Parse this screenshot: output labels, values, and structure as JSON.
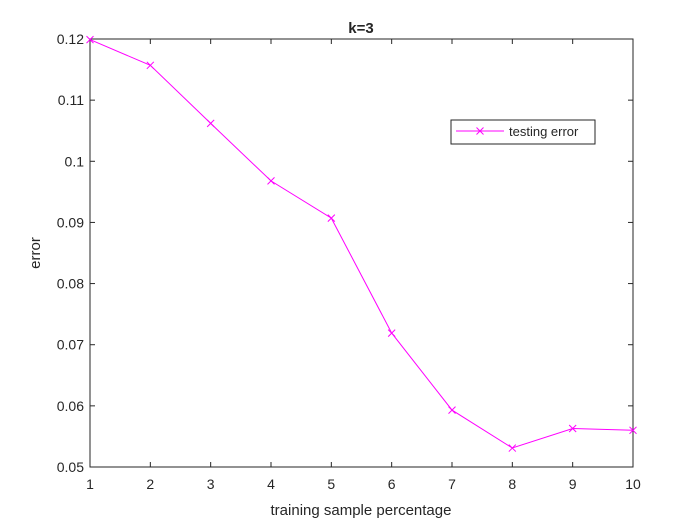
{
  "chart_data": {
    "type": "line",
    "title": "k=3",
    "xlabel": "training sample percentage",
    "ylabel": "error",
    "xlim": [
      1,
      10
    ],
    "ylim": [
      0.05,
      0.12
    ],
    "x_ticks": [
      1,
      2,
      3,
      4,
      5,
      6,
      7,
      8,
      9,
      10
    ],
    "x_tick_labels": [
      "1",
      "2",
      "3",
      "4",
      "5",
      "6",
      "7",
      "8",
      "9",
      "10"
    ],
    "y_ticks": [
      0.05,
      0.06,
      0.07,
      0.08,
      0.09,
      0.1,
      0.11,
      0.12
    ],
    "y_tick_labels": [
      "0.05",
      "0.06",
      "0.07",
      "0.08",
      "0.09",
      "0.1",
      "0.11",
      "0.12"
    ],
    "grid": false,
    "legend_position": "upper-right",
    "series": [
      {
        "name": "testing error",
        "color": "#ff00ff",
        "marker": "x",
        "x": [
          1,
          2,
          3,
          4,
          5,
          6,
          7,
          8,
          9,
          10
        ],
        "y": [
          0.1199,
          0.1157,
          0.1062,
          0.0968,
          0.0907,
          0.0719,
          0.0593,
          0.0531,
          0.0563,
          0.056
        ]
      }
    ]
  }
}
